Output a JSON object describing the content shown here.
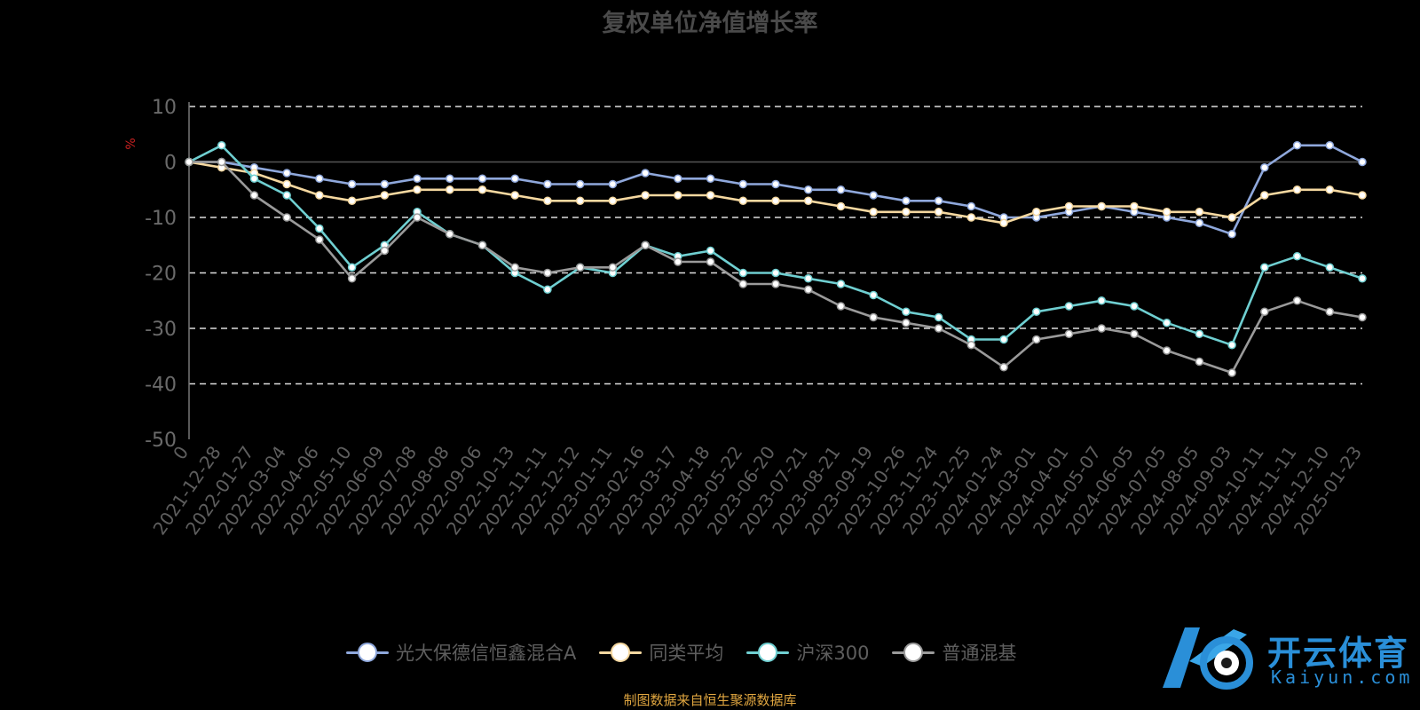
{
  "chart_data": {
    "type": "line",
    "title": "复权单位净值增长率",
    "ylabel": "%",
    "ylim": [
      -50,
      10
    ],
    "yticks": [
      10,
      0,
      -10,
      -20,
      -30,
      -40,
      -50
    ],
    "grid": true,
    "legend_position": "bottom",
    "x_tick_labels": [
      "0",
      "2021-12-28",
      "2022-01-27",
      "2022-03-04",
      "2022-04-06",
      "2022-05-10",
      "2022-06-09",
      "2022-07-08",
      "2022-08-08",
      "2022-09-06",
      "2022-10-13",
      "2022-11-11",
      "2022-12-12",
      "2023-01-11",
      "2023-02-16",
      "2023-03-17",
      "2023-04-18",
      "2023-05-22",
      "2023-06-20",
      "2023-07-21",
      "2023-08-21",
      "2023-09-19",
      "2023-10-26",
      "2023-11-24",
      "2023-12-25",
      "2024-01-24",
      "2024-03-01",
      "2024-04-01",
      "2024-05-07",
      "2024-06-05",
      "2024-07-05",
      "2024-08-05",
      "2024-09-03",
      "2024-10-11",
      "2024-11-11",
      "2024-12-10",
      "2025-01-23"
    ],
    "series": [
      {
        "name": "光大保德信恒鑫混合A",
        "color": "#8fa8dc",
        "values": [
          0,
          0,
          -1,
          -2,
          -3,
          -4,
          -4,
          -3,
          -3,
          -3,
          -3,
          -4,
          -4,
          -4,
          -2,
          -3,
          -3,
          -4,
          -4,
          -5,
          -5,
          -6,
          -7,
          -7,
          -8,
          -10,
          -10,
          -9,
          -8,
          -9,
          -10,
          -11,
          -13,
          -1,
          3,
          3,
          0
        ]
      },
      {
        "name": "同类平均",
        "color": "#f5d8a0",
        "values": [
          0,
          -1,
          -2,
          -4,
          -6,
          -7,
          -6,
          -5,
          -5,
          -5,
          -6,
          -7,
          -7,
          -7,
          -6,
          -6,
          -6,
          -7,
          -7,
          -7,
          -8,
          -9,
          -9,
          -9,
          -10,
          -11,
          -9,
          -8,
          -8,
          -8,
          -9,
          -9,
          -10,
          -6,
          -5,
          -5,
          -6
        ]
      },
      {
        "name": "沪深300",
        "color": "#6fcfd1",
        "values": [
          0,
          3,
          -3,
          -6,
          -12,
          -19,
          -15,
          -9,
          -13,
          -15,
          -20,
          -23,
          -19,
          -20,
          -15,
          -17,
          -16,
          -20,
          -20,
          -21,
          -22,
          -24,
          -27,
          -28,
          -32,
          -32,
          -27,
          -26,
          -25,
          -26,
          -29,
          -31,
          -33,
          -19,
          -17,
          -19,
          -21
        ]
      },
      {
        "name": "普通混基",
        "color": "#9a9a9a",
        "values": [
          0,
          0,
          -6,
          -10,
          -14,
          -21,
          -16,
          -10,
          -13,
          -15,
          -19,
          -20,
          -19,
          -19,
          -15,
          -18,
          -18,
          -22,
          -22,
          -23,
          -26,
          -28,
          -29,
          -30,
          -33,
          -37,
          -32,
          -31,
          -30,
          -31,
          -34,
          -36,
          -38,
          -27,
          -25,
          -27,
          -28
        ]
      }
    ]
  },
  "source_note": "制图数据来自恒生聚源数据库",
  "watermark": {
    "brand": "开云体育",
    "domain": "Kaiyun.com"
  }
}
